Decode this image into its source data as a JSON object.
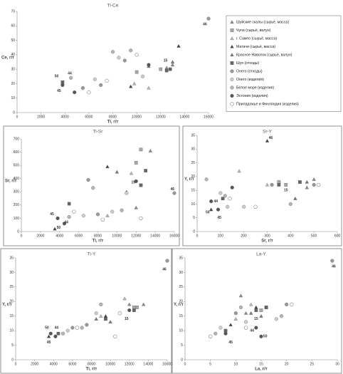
{
  "chart_data": [
    {
      "type": "scatter",
      "title": "Ti-Ce",
      "x_label": "Ti, г/т",
      "y_label": "Ce, г/т",
      "legend": "right",
      "xlim": [
        0,
        16000
      ],
      "xticks": [
        0,
        2000,
        4000,
        6000,
        8000,
        10000,
        12000,
        14000,
        16000
      ],
      "ylim": [
        0,
        70
      ],
      "yticks": [
        0,
        10,
        20,
        30,
        40,
        50,
        60,
        70
      ],
      "series": [
        {
          "name": "Шуйские скалы (сырьё, масса)",
          "marker": "triangle",
          "color": "#8a8a8a",
          "x": [
            12500,
            13000
          ],
          "values": [
            31,
            33
          ]
        },
        {
          "name": "Чупа (сырьё, валун)",
          "marker": "square",
          "color": "#a8a8a8",
          "x": [
            10000,
            12000
          ],
          "values": [
            28,
            30
          ]
        },
        {
          "name": "г. Сампо (сырьё, масса)",
          "marker": "triangle",
          "color": "#b8b8b8",
          "x": [
            9800,
            11000
          ],
          "values": [
            20,
            17
          ]
        },
        {
          "name": "Матачи (сырьё, масса)",
          "marker": "triangle",
          "color": "#444444",
          "x": [
            13500,
            9500
          ],
          "values": [
            46,
            18
          ]
        },
        {
          "name": "Красное Наволок (сырьё, валун)",
          "marker": "triangle",
          "color": "#777777",
          "x": [
            13000,
            11000
          ],
          "values": [
            35,
            32
          ]
        },
        {
          "name": "Шуя (отходы)",
          "marker": "square",
          "color": "#666666",
          "x": [
            3800,
            12500,
            12800
          ],
          "values": [
            21,
            29,
            30
          ]
        },
        {
          "name": "Онего (отходы)",
          "marker": "circle",
          "color": "#999999",
          "x": [
            5500,
            7000,
            9000,
            16000
          ],
          "values": [
            17,
            19,
            36,
            65
          ]
        },
        {
          "name": "Онего (изделия)",
          "marker": "circle",
          "color": "#cccccc",
          "x": [
            6500,
            8500,
            10500
          ],
          "values": [
            23,
            38,
            25
          ]
        },
        {
          "name": "Белое море (изделия)",
          "marker": "circle",
          "color": "#b5b5b5",
          "x": [
            4500,
            8000,
            9500
          ],
          "values": [
            24,
            42,
            43
          ]
        },
        {
          "name": "Эстония (изделия)",
          "marker": "circle",
          "color": "#555555",
          "x": [
            3800,
            4800,
            11000
          ],
          "values": [
            19,
            14,
            33
          ]
        },
        {
          "name": "Приладожье и Финляндия (изделия)",
          "marker": "ring",
          "color": "#888888",
          "x": [
            6000,
            7500,
            10000
          ],
          "values": [
            14,
            22,
            40
          ]
        }
      ],
      "annotations": [
        {
          "text": "50",
          "x": 3300,
          "y": 25
        },
        {
          "text": "44",
          "x": 4400,
          "y": 27
        },
        {
          "text": "45",
          "x": 3500,
          "y": 15
        },
        {
          "text": "46",
          "x": 15700,
          "y": 61
        },
        {
          "text": "15",
          "x": 12400,
          "y": 36
        }
      ]
    },
    {
      "type": "scatter",
      "title": "Ti-Sr",
      "x_label": "Ti, г/т",
      "y_label": "Sr, г/т",
      "xlim": [
        0,
        16000
      ],
      "xticks": [
        0,
        2000,
        4000,
        6000,
        8000,
        10000,
        12000,
        14000,
        16000
      ],
      "ylim": [
        0,
        700
      ],
      "yticks": [
        0,
        100,
        200,
        300,
        400,
        500,
        600,
        700
      ],
      "series": [
        {
          "marker": "triangle",
          "color": "#8a8a8a",
          "x": [
            12000,
            13500
          ],
          "values": [
            180,
            610
          ]
        },
        {
          "marker": "square",
          "color": "#a8a8a8",
          "x": [
            12500,
            12000
          ],
          "values": [
            620,
            520
          ]
        },
        {
          "marker": "triangle",
          "color": "#b8b8b8",
          "x": [
            11500,
            9000
          ],
          "values": [
            440,
            120
          ]
        },
        {
          "marker": "triangle",
          "color": "#444444",
          "x": [
            9000,
            3500
          ],
          "values": [
            490,
            20
          ]
        },
        {
          "marker": "triangle",
          "color": "#777777",
          "x": [
            10000,
            11000
          ],
          "values": [
            450,
            300
          ]
        },
        {
          "marker": "square",
          "color": "#666666",
          "x": [
            5000,
            12500,
            13000
          ],
          "values": [
            210,
            350,
            460
          ]
        },
        {
          "marker": "circle",
          "color": "#999999",
          "x": [
            7000,
            8000,
            16000
          ],
          "values": [
            390,
            130,
            290
          ]
        },
        {
          "marker": "circle",
          "color": "#cccccc",
          "x": [
            6500,
            9500,
            11000
          ],
          "values": [
            120,
            150,
            290
          ]
        },
        {
          "marker": "circle",
          "color": "#b5b5b5",
          "x": [
            5000,
            7500,
            10500
          ],
          "values": [
            110,
            330,
            160
          ]
        },
        {
          "marker": "circle",
          "color": "#555555",
          "x": [
            3800,
            4500,
            12000
          ],
          "values": [
            100,
            60,
            380
          ]
        },
        {
          "marker": "ring",
          "color": "#888888",
          "x": [
            5500,
            8500,
            12500
          ],
          "values": [
            150,
            90,
            100
          ]
        }
      ],
      "annotations": [
        {
          "text": "50",
          "x": 3900,
          "y": 30
        },
        {
          "text": "44",
          "x": 4700,
          "y": 70
        },
        {
          "text": "45",
          "x": 3200,
          "y": 130
        },
        {
          "text": "46",
          "x": 15800,
          "y": 320
        },
        {
          "text": "15",
          "x": 11700,
          "y": 370
        }
      ]
    },
    {
      "type": "scatter",
      "title": "Sr-Y",
      "x_label": "Sr, г/т",
      "y_label": "Y, г/т",
      "xlim": [
        0,
        600
      ],
      "xticks": [
        0,
        100,
        200,
        300,
        400,
        500,
        600
      ],
      "ylim": [
        0,
        35
      ],
      "yticks": [
        0,
        5,
        10,
        15,
        20,
        25,
        30,
        35
      ],
      "series": [
        {
          "marker": "triangle",
          "color": "#8a8a8a",
          "x": [
            500,
            470
          ],
          "values": [
            19,
            16
          ]
        },
        {
          "marker": "square",
          "color": "#a8a8a8",
          "x": [
            350,
            380
          ],
          "values": [
            18,
            17
          ]
        },
        {
          "marker": "triangle",
          "color": "#b8b8b8",
          "x": [
            180,
            300
          ],
          "values": [
            22,
            17
          ]
        },
        {
          "marker": "triangle",
          "color": "#444444",
          "x": [
            300,
            60
          ],
          "values": [
            33,
            8
          ]
        },
        {
          "marker": "triangle",
          "color": "#777777",
          "x": [
            470,
            420
          ],
          "values": [
            18,
            12
          ]
        },
        {
          "marker": "square",
          "color": "#666666",
          "x": [
            110,
            350,
            440
          ],
          "values": [
            12,
            17,
            18
          ]
        },
        {
          "marker": "circle",
          "color": "#999999",
          "x": [
            320,
            500
          ],
          "values": [
            17,
            17
          ]
        },
        {
          "marker": "circle",
          "color": "#cccccc",
          "x": [
            100,
            130,
            200
          ],
          "values": [
            14,
            9,
            9
          ]
        },
        {
          "marker": "circle",
          "color": "#b5b5b5",
          "x": [
            40,
            120,
            400
          ],
          "values": [
            19,
            13,
            10
          ]
        },
        {
          "marker": "circle",
          "color": "#555555",
          "x": [
            60,
            90,
            150
          ],
          "values": [
            11,
            8,
            16
          ]
        },
        {
          "marker": "ring",
          "color": "#888888",
          "x": [
            140,
            250,
            520
          ],
          "values": [
            12,
            9,
            17
          ]
        }
      ],
      "annotations": [
        {
          "text": "46",
          "x": 315,
          "y": 34
        },
        {
          "text": "50",
          "x": 45,
          "y": 7
        },
        {
          "text": "45",
          "x": 95,
          "y": 5
        },
        {
          "text": "44",
          "x": 80,
          "y": 11
        },
        {
          "text": "15",
          "x": 380,
          "y": 15
        }
      ]
    },
    {
      "type": "scatter",
      "title": "Ti-Y",
      "x_label": "Ti, г/т",
      "y_label": "Y, г/т",
      "xlim": [
        0,
        16000
      ],
      "xticks": [
        0,
        2000,
        4000,
        6000,
        8000,
        10000,
        12000,
        14000,
        16000
      ],
      "ylim": [
        0,
        35
      ],
      "yticks": [
        0,
        5,
        10,
        15,
        20,
        25,
        30,
        35
      ],
      "series": [
        {
          "marker": "triangle",
          "color": "#8a8a8a",
          "x": [
            12000,
            13500
          ],
          "values": [
            19,
            19
          ]
        },
        {
          "marker": "square",
          "color": "#a8a8a8",
          "x": [
            12500,
            12800
          ],
          "values": [
            18,
            18
          ]
        },
        {
          "marker": "triangle",
          "color": "#b8b8b8",
          "x": [
            11500,
            9000
          ],
          "values": [
            21,
            15
          ]
        },
        {
          "marker": "triangle",
          "color": "#444444",
          "x": [
            3500,
            9500
          ],
          "values": [
            8,
            15
          ]
        },
        {
          "marker": "triangle",
          "color": "#777777",
          "x": [
            10000,
            8500
          ],
          "values": [
            13,
            14
          ]
        },
        {
          "marker": "square",
          "color": "#666666",
          "x": [
            4500,
            9500,
            12500
          ],
          "values": [
            9,
            14,
            17
          ]
        },
        {
          "marker": "circle",
          "color": "#999999",
          "x": [
            6000,
            7500,
            16000
          ],
          "values": [
            11,
            12,
            34
          ]
        },
        {
          "marker": "circle",
          "color": "#cccccc",
          "x": [
            5500,
            8500,
            11000
          ],
          "values": [
            10,
            16,
            16
          ]
        },
        {
          "marker": "circle",
          "color": "#b5b5b5",
          "x": [
            5000,
            7000,
            9000
          ],
          "values": [
            9,
            11,
            19
          ]
        },
        {
          "marker": "circle",
          "color": "#555555",
          "x": [
            3700,
            4200,
            12000
          ],
          "values": [
            9,
            8,
            17
          ]
        },
        {
          "marker": "ring",
          "color": "#888888",
          "x": [
            6500,
            10500,
            11000
          ],
          "values": [
            11,
            8,
            16
          ]
        }
      ],
      "annotations": [
        {
          "text": "50",
          "x": 3300,
          "y": 11
        },
        {
          "text": "44",
          "x": 4300,
          "y": 11
        },
        {
          "text": "45",
          "x": 3500,
          "y": 6
        },
        {
          "text": "46",
          "x": 15700,
          "y": 31
        },
        {
          "text": "15",
          "x": 11700,
          "y": 14
        }
      ]
    },
    {
      "type": "scatter",
      "title": "La-Y",
      "x_label": "La, г/т",
      "y_label": "Y, г/т",
      "xlim": [
        0,
        30
      ],
      "xticks": [
        0,
        5,
        10,
        15,
        20,
        25,
        30
      ],
      "ylim": [
        0,
        35
      ],
      "yticks": [
        0,
        5,
        10,
        15,
        20,
        25,
        30,
        35
      ],
      "series": [
        {
          "marker": "triangle",
          "color": "#8a8a8a",
          "x": [
            11,
            12
          ],
          "values": [
            22,
            16
          ]
        },
        {
          "marker": "square",
          "color": "#a8a8a8",
          "x": [
            15,
            16
          ],
          "values": [
            17,
            18
          ]
        },
        {
          "marker": "triangle",
          "color": "#b8b8b8",
          "x": [
            13,
            10
          ],
          "values": [
            19,
            14
          ]
        },
        {
          "marker": "triangle",
          "color": "#444444",
          "x": [
            9,
            14
          ],
          "values": [
            12,
            18
          ]
        },
        {
          "marker": "triangle",
          "color": "#777777",
          "x": [
            15,
            13
          ],
          "values": [
            15,
            16
          ]
        },
        {
          "marker": "square",
          "color": "#666666",
          "x": [
            8,
            14,
            16
          ],
          "values": [
            10,
            17,
            18
          ]
        },
        {
          "marker": "circle",
          "color": "#999999",
          "x": [
            10,
            20,
            29
          ],
          "values": [
            16,
            19,
            34
          ]
        },
        {
          "marker": "circle",
          "color": "#cccccc",
          "x": [
            7,
            12,
            18
          ],
          "values": [
            11,
            13,
            14
          ]
        },
        {
          "marker": "circle",
          "color": "#b5b5b5",
          "x": [
            6,
            11,
            19
          ],
          "values": [
            9,
            18,
            15
          ]
        },
        {
          "marker": "circle",
          "color": "#555555",
          "x": [
            8,
            14,
            15
          ],
          "values": [
            9,
            11,
            8
          ]
        },
        {
          "marker": "ring",
          "color": "#888888",
          "x": [
            5,
            12,
            21
          ],
          "values": [
            8,
            11,
            19
          ]
        }
      ],
      "annotations": [
        {
          "text": "46",
          "x": 29.3,
          "y": 32
        },
        {
          "text": "50",
          "x": 15.8,
          "y": 8
        },
        {
          "text": "44",
          "x": 13.2,
          "y": 10
        },
        {
          "text": "45",
          "x": 9,
          "y": 6
        },
        {
          "text": "15",
          "x": 14,
          "y": 14
        }
      ]
    }
  ]
}
